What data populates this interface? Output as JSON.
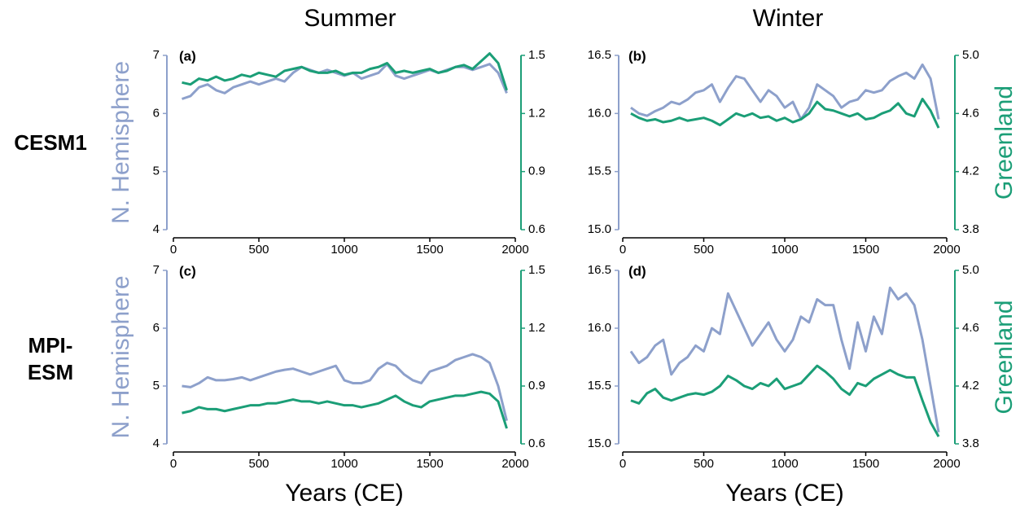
{
  "column_titles": [
    "Summer",
    "Winter"
  ],
  "row_labels": [
    [
      "CESM1"
    ],
    [
      "MPI-",
      "ESM"
    ]
  ],
  "chart_data": [
    {
      "type": "line",
      "panel_label": "(a)",
      "ylabel": "N. Hemisphere",
      "x": [
        50,
        100,
        150,
        200,
        250,
        300,
        350,
        400,
        450,
        500,
        550,
        600,
        650,
        700,
        750,
        800,
        850,
        900,
        950,
        1000,
        1050,
        1100,
        1150,
        1200,
        1250,
        1300,
        1350,
        1400,
        1450,
        1500,
        1550,
        1600,
        1650,
        1700,
        1750,
        1800,
        1850,
        1900,
        1950
      ],
      "xlim": [
        0,
        2000
      ],
      "xticks": [
        0,
        500,
        1000,
        1500,
        2000
      ],
      "ylim": [
        4,
        7
      ],
      "yticks": [
        4,
        5,
        6,
        7
      ],
      "y2lim": [
        0.6,
        1.5
      ],
      "y2ticks": [
        0.6,
        0.9,
        1.2,
        1.5
      ],
      "series": [
        {
          "color": "#8da0cb",
          "values": [
            6.25,
            6.3,
            6.45,
            6.5,
            6.4,
            6.35,
            6.45,
            6.5,
            6.55,
            6.5,
            6.55,
            6.6,
            6.55,
            6.7,
            6.8,
            6.75,
            6.7,
            6.75,
            6.7,
            6.65,
            6.7,
            6.6,
            6.65,
            6.7,
            6.85,
            6.65,
            6.6,
            6.65,
            6.7,
            6.75,
            6.7,
            6.75,
            6.8,
            6.8,
            6.75,
            6.8,
            6.85,
            6.7,
            6.35
          ]
        },
        {
          "color": "#1b9e77",
          "axis": "y2",
          "values": [
            1.36,
            1.35,
            1.38,
            1.37,
            1.39,
            1.37,
            1.38,
            1.4,
            1.39,
            1.41,
            1.4,
            1.39,
            1.42,
            1.43,
            1.44,
            1.42,
            1.41,
            1.41,
            1.42,
            1.4,
            1.41,
            1.41,
            1.43,
            1.44,
            1.46,
            1.41,
            1.42,
            1.41,
            1.42,
            1.43,
            1.41,
            1.42,
            1.44,
            1.45,
            1.43,
            1.47,
            1.51,
            1.46,
            1.32
          ]
        }
      ]
    },
    {
      "type": "line",
      "panel_label": "(b)",
      "y2label": "Greenland",
      "x": [
        50,
        100,
        150,
        200,
        250,
        300,
        350,
        400,
        450,
        500,
        550,
        600,
        650,
        700,
        750,
        800,
        850,
        900,
        950,
        1000,
        1050,
        1100,
        1150,
        1200,
        1250,
        1300,
        1350,
        1400,
        1450,
        1500,
        1550,
        1600,
        1650,
        1700,
        1750,
        1800,
        1850,
        1900,
        1950
      ],
      "xlim": [
        0,
        2000
      ],
      "xticks": [
        0,
        500,
        1000,
        1500,
        2000
      ],
      "ylim": [
        15.0,
        16.5
      ],
      "yticks": [
        {
          "value": 15.0,
          "label": "15.0"
        },
        15.5,
        {
          "value": 16.0,
          "label": "16.0"
        },
        16.5
      ],
      "y2lim": [
        3.8,
        5.0
      ],
      "y2ticks": [
        3.8,
        4.2,
        4.6,
        {
          "value": 5.0,
          "label": "5.0"
        }
      ],
      "series": [
        {
          "color": "#8da0cb",
          "values": [
            16.05,
            16.0,
            15.98,
            16.02,
            16.05,
            16.1,
            16.08,
            16.12,
            16.18,
            16.2,
            16.25,
            16.1,
            16.22,
            16.32,
            16.3,
            16.2,
            16.1,
            16.2,
            16.15,
            16.05,
            16.1,
            15.95,
            16.05,
            16.25,
            16.2,
            16.15,
            16.05,
            16.1,
            16.12,
            16.2,
            16.18,
            16.2,
            16.28,
            16.32,
            16.35,
            16.3,
            16.42,
            16.3,
            15.95
          ]
        },
        {
          "color": "#1b9e77",
          "axis": "y2",
          "values": [
            4.6,
            4.57,
            4.55,
            4.56,
            4.54,
            4.55,
            4.57,
            4.55,
            4.56,
            4.57,
            4.55,
            4.52,
            4.56,
            4.6,
            4.58,
            4.6,
            4.57,
            4.58,
            4.55,
            4.57,
            4.54,
            4.56,
            4.6,
            4.68,
            4.63,
            4.62,
            4.6,
            4.58,
            4.6,
            4.56,
            4.57,
            4.6,
            4.62,
            4.67,
            4.6,
            4.58,
            4.7,
            4.62,
            4.5
          ]
        }
      ]
    },
    {
      "type": "line",
      "panel_label": "(c)",
      "ylabel": "N. Hemisphere",
      "xlabel": "Years (CE)",
      "x": [
        50,
        100,
        150,
        200,
        250,
        300,
        350,
        400,
        450,
        500,
        550,
        600,
        650,
        700,
        750,
        800,
        850,
        900,
        950,
        1000,
        1050,
        1100,
        1150,
        1200,
        1250,
        1300,
        1350,
        1400,
        1450,
        1500,
        1550,
        1600,
        1650,
        1700,
        1750,
        1800,
        1850,
        1900,
        1950
      ],
      "xlim": [
        0,
        2000
      ],
      "xticks": [
        0,
        500,
        1000,
        1500,
        2000
      ],
      "ylim": [
        4,
        7
      ],
      "yticks": [
        4,
        5,
        6,
        7
      ],
      "y2lim": [
        0.6,
        1.5
      ],
      "y2ticks": [
        0.6,
        0.9,
        1.2,
        1.5
      ],
      "series": [
        {
          "color": "#8da0cb",
          "values": [
            5.0,
            4.98,
            5.05,
            5.15,
            5.1,
            5.1,
            5.12,
            5.15,
            5.1,
            5.15,
            5.2,
            5.25,
            5.28,
            5.3,
            5.25,
            5.2,
            5.25,
            5.3,
            5.35,
            5.1,
            5.05,
            5.05,
            5.1,
            5.3,
            5.4,
            5.35,
            5.2,
            5.1,
            5.05,
            5.25,
            5.3,
            5.35,
            5.45,
            5.5,
            5.55,
            5.5,
            5.4,
            5.0,
            4.4
          ]
        },
        {
          "color": "#1b9e77",
          "axis": "y2",
          "values": [
            0.76,
            0.77,
            0.79,
            0.78,
            0.78,
            0.77,
            0.78,
            0.79,
            0.8,
            0.8,
            0.81,
            0.81,
            0.82,
            0.83,
            0.82,
            0.82,
            0.81,
            0.82,
            0.81,
            0.8,
            0.8,
            0.79,
            0.8,
            0.81,
            0.83,
            0.85,
            0.82,
            0.8,
            0.79,
            0.82,
            0.83,
            0.84,
            0.85,
            0.85,
            0.86,
            0.87,
            0.86,
            0.82,
            0.68
          ]
        }
      ]
    },
    {
      "type": "line",
      "panel_label": "(d)",
      "y2label": "Greenland",
      "xlabel": "Years (CE)",
      "x": [
        50,
        100,
        150,
        200,
        250,
        300,
        350,
        400,
        450,
        500,
        550,
        600,
        650,
        700,
        750,
        800,
        850,
        900,
        950,
        1000,
        1050,
        1100,
        1150,
        1200,
        1250,
        1300,
        1350,
        1400,
        1450,
        1500,
        1550,
        1600,
        1650,
        1700,
        1750,
        1800,
        1850,
        1900,
        1950
      ],
      "xlim": [
        0,
        2000
      ],
      "xticks": [
        0,
        500,
        1000,
        1500,
        2000
      ],
      "ylim": [
        15.0,
        16.5
      ],
      "yticks": [
        {
          "value": 15.0,
          "label": "15.0"
        },
        15.5,
        {
          "value": 16.0,
          "label": "16.0"
        },
        16.5
      ],
      "y2lim": [
        3.8,
        5.0
      ],
      "y2ticks": [
        3.8,
        4.2,
        4.6,
        {
          "value": 5.0,
          "label": "5.0"
        }
      ],
      "series": [
        {
          "color": "#8da0cb",
          "values": [
            15.8,
            15.7,
            15.75,
            15.85,
            15.9,
            15.6,
            15.7,
            15.75,
            15.85,
            15.8,
            16.0,
            15.95,
            16.3,
            16.15,
            16.0,
            15.85,
            15.95,
            16.05,
            15.9,
            15.8,
            15.9,
            16.1,
            16.05,
            16.25,
            16.2,
            16.2,
            15.9,
            15.65,
            16.05,
            15.8,
            16.1,
            15.95,
            16.35,
            16.25,
            16.3,
            16.2,
            15.9,
            15.5,
            15.1
          ]
        },
        {
          "color": "#1b9e77",
          "axis": "y2",
          "values": [
            4.1,
            4.08,
            4.15,
            4.18,
            4.12,
            4.1,
            4.12,
            4.14,
            4.15,
            4.14,
            4.16,
            4.2,
            4.27,
            4.24,
            4.2,
            4.18,
            4.22,
            4.2,
            4.25,
            4.18,
            4.2,
            4.22,
            4.28,
            4.34,
            4.3,
            4.25,
            4.18,
            4.14,
            4.22,
            4.2,
            4.25,
            4.28,
            4.31,
            4.28,
            4.26,
            4.26,
            4.1,
            3.95,
            3.85
          ]
        }
      ]
    }
  ]
}
